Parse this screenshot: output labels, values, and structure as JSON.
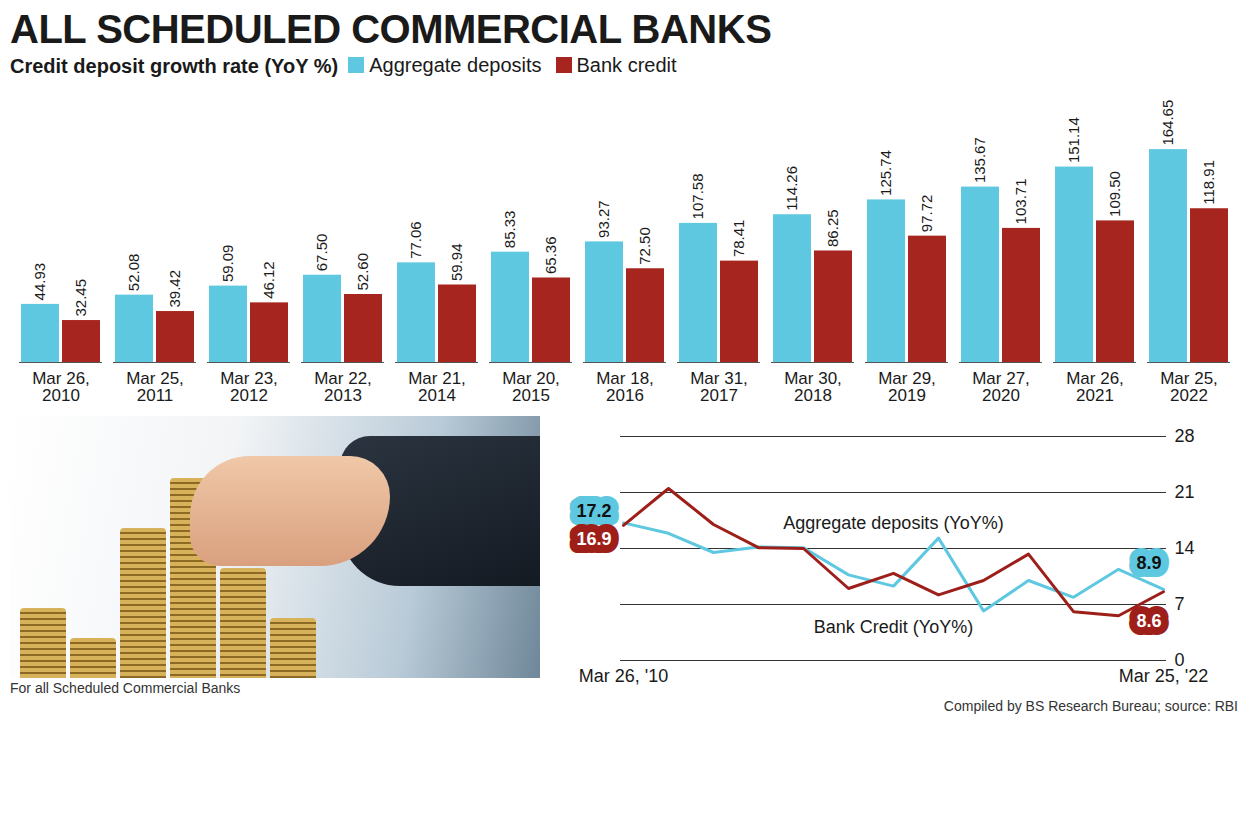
{
  "chart_data": [
    {
      "type": "bar",
      "title": "ALL SCHEDULED COMMERCIAL BANKS",
      "subtitle": "Credit deposit growth rate (YoY %)",
      "categories": [
        "Mar 26, 2010",
        "Mar 25, 2011",
        "Mar 23, 2012",
        "Mar 22, 2013",
        "Mar 21, 2014",
        "Mar 20, 2015",
        "Mar 18, 2016",
        "Mar 31, 2017",
        "Mar 30, 2018",
        "Mar 29, 2019",
        "Mar 27, 2020",
        "Mar 26, 2021",
        "Mar 25, 2022"
      ],
      "series": [
        {
          "name": "Aggregate deposits",
          "color": "#5ec8e0",
          "values": [
            44.93,
            52.08,
            59.09,
            67.5,
            77.06,
            85.33,
            93.27,
            107.58,
            114.26,
            125.74,
            135.67,
            151.14,
            164.65
          ],
          "value_labels": [
            "44.93",
            "52.08",
            "59.09",
            "67.50",
            "77.06",
            "85.33",
            "93.27",
            "107.58",
            "114.26",
            "125.74",
            "135.67",
            "151.14",
            "164.65"
          ]
        },
        {
          "name": "Bank credit",
          "color": "#a6261f",
          "values": [
            32.45,
            39.42,
            46.12,
            52.6,
            59.94,
            65.36,
            72.5,
            78.41,
            86.25,
            97.72,
            103.71,
            109.5,
            118.91
          ],
          "value_labels": [
            "32.45",
            "39.42",
            "46.12",
            "52.60",
            "59.94",
            "65.36",
            "72.50",
            "78.41",
            "86.25",
            "97.72",
            "103.71",
            "109.50",
            "118.91"
          ]
        }
      ],
      "ylim": [
        0,
        215
      ],
      "data_labels": true,
      "tick_labels": "x",
      "legend": "top"
    },
    {
      "type": "line",
      "categories": [
        "Mar 26, '10",
        null,
        null,
        null,
        null,
        null,
        null,
        null,
        null,
        null,
        null,
        null,
        "Mar 25, '22"
      ],
      "series": [
        {
          "name": "Aggregate deposits (YoY%)",
          "color": "#5ec8e0",
          "values": [
            17.2,
            15.9,
            13.5,
            14.2,
            14.1,
            10.7,
            9.3,
            15.3,
            6.2,
            10.0,
            7.9,
            11.4,
            8.9
          ],
          "value_labels": [
            "17.2",
            null,
            null,
            null,
            null,
            null,
            null,
            null,
            null,
            null,
            null,
            null,
            "8.9"
          ]
        },
        {
          "name": "Bank Credit (YoY%)",
          "color": "#9e1f1a",
          "values": [
            16.9,
            21.5,
            17.0,
            14.1,
            14.0,
            9.0,
            10.9,
            8.2,
            10.0,
            13.3,
            6.1,
            5.6,
            8.6
          ],
          "value_labels": [
            "16.9",
            null,
            null,
            null,
            null,
            null,
            null,
            null,
            null,
            null,
            null,
            null,
            "8.6"
          ]
        }
      ],
      "ylim": [
        0,
        28
      ],
      "yticks": [
        0,
        7,
        14,
        21,
        28
      ],
      "grid": true
    }
  ],
  "footer": {
    "left": "For all Scheduled Commercial Banks",
    "right": "Compiled by BS Research Bureau; source: RBI"
  }
}
